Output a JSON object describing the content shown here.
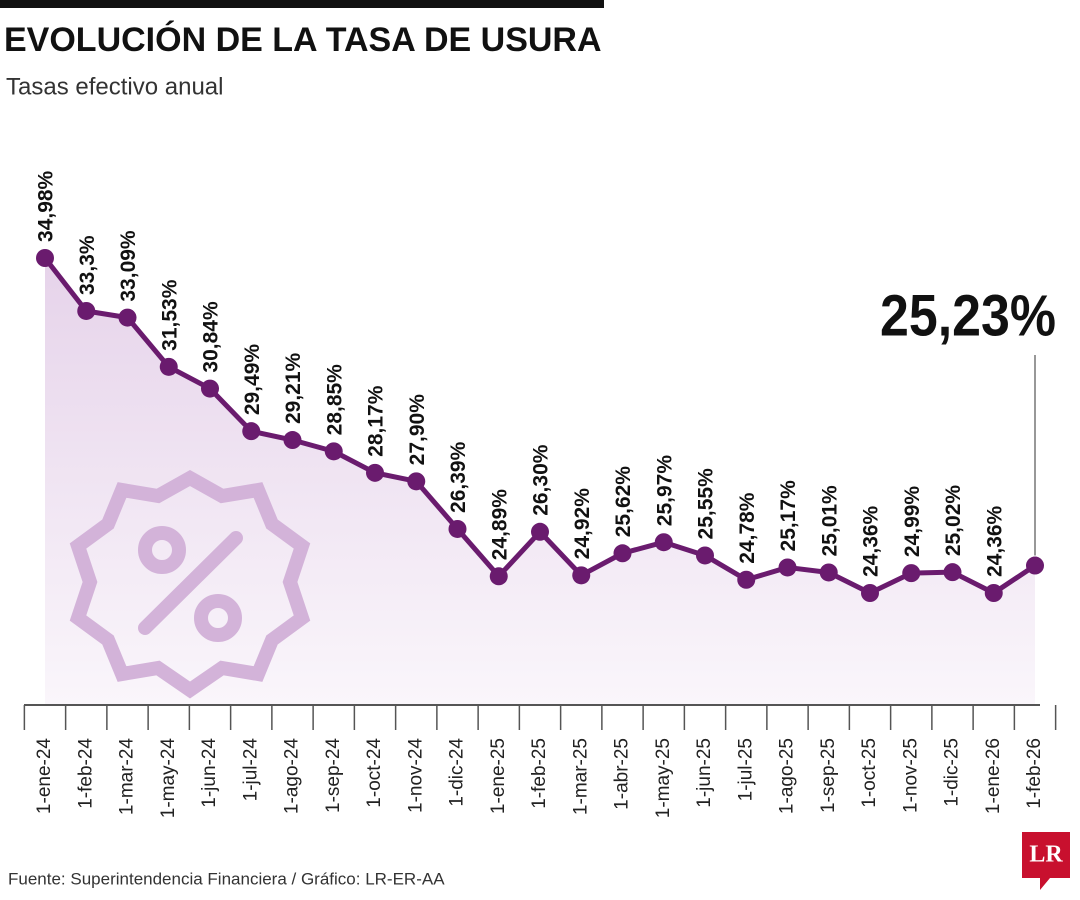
{
  "title": "EVOLUCIÓN DE LA TASA DE USURA",
  "subtitle": "Tasas efectivo anual",
  "source": "Fuente: Superintendencia Financiera / Gráfico: LR-ER-AA",
  "logo": "LR",
  "chart_data": {
    "type": "line",
    "categories": [
      "1-ene-24",
      "1-feb-24",
      "1-mar-24",
      "1-may-24",
      "1-jun-24",
      "1-jul-24",
      "1-ago-24",
      "1-sep-24",
      "1-oct-24",
      "1-nov-24",
      "1-dic-24",
      "1-ene-25",
      "1-feb-25",
      "1-mar-25",
      "1-abr-25",
      "1-may-25",
      "1-jun-25",
      "1-jul-25",
      "1-ago-25",
      "1-sep-25",
      "1-oct-25",
      "1-nov-25",
      "1-dic-25",
      "1-ene-26",
      "1-feb-26"
    ],
    "series": [
      {
        "name": "Tasa de usura",
        "color": "#6a1b6e",
        "values": [
          34.98,
          33.3,
          33.09,
          31.53,
          30.84,
          29.49,
          29.21,
          28.85,
          28.17,
          27.9,
          26.39,
          24.89,
          26.3,
          24.92,
          25.62,
          25.97,
          25.55,
          24.78,
          25.17,
          25.01,
          24.36,
          24.99,
          25.02,
          24.36,
          25.23
        ],
        "value_labels": [
          "34,98%",
          "33,3%",
          "33,09%",
          "31,53%",
          "30,84%",
          "29,49%",
          "29,21%",
          "28,85%",
          "28,17%",
          "27,90%",
          "26,39%",
          "24,89%",
          "26,30%",
          "24,92%",
          "25,62%",
          "25,97%",
          "25,55%",
          "24,78%",
          "25,17%",
          "25,01%",
          "24,36%",
          "24,99%",
          "25,02%",
          "24,36%",
          "25,23%"
        ]
      }
    ]
  }
}
